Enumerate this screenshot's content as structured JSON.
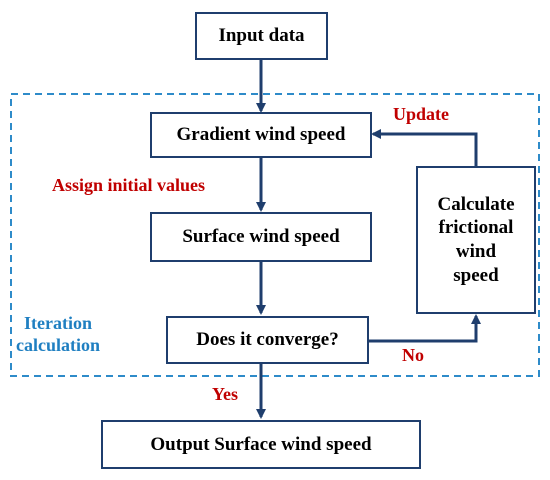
{
  "nodes": {
    "input": "Input data",
    "gradient": "Gradient wind speed",
    "surface": "Surface wind speed",
    "converge": "Does it converge?",
    "output": "Output Surface wind speed",
    "frictional_lines": [
      "Calculate",
      "frictional",
      "wind",
      "speed"
    ]
  },
  "labels": {
    "update": "Update",
    "assign": "Assign initial values",
    "iteration_lines": [
      "Iteration",
      "calculation"
    ],
    "no": "No",
    "yes": "Yes"
  },
  "colors": {
    "box_border": "#1f3e6d",
    "arrow": "#1f3e6d",
    "dashed_frame": "#2e8bc9",
    "label_red": "#c00000",
    "label_blue": "#1f7fc1"
  }
}
